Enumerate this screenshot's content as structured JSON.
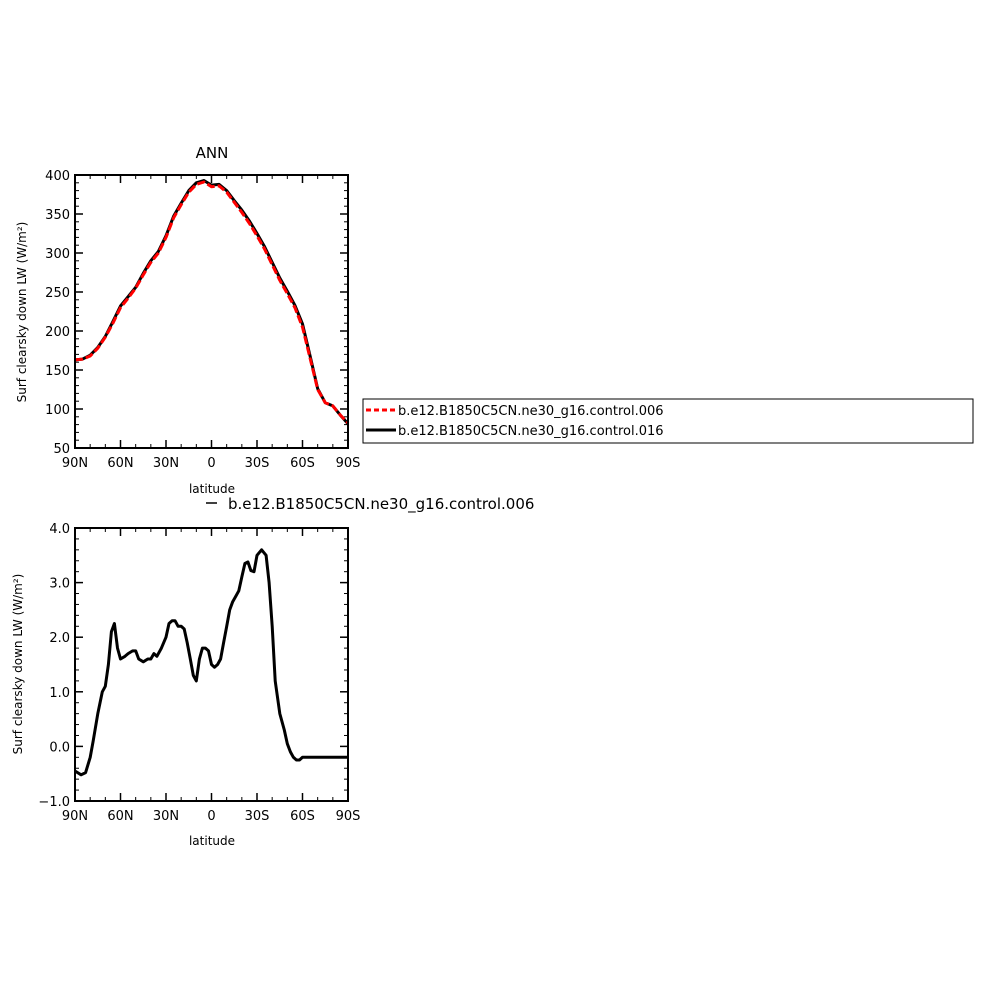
{
  "chart_data": [
    {
      "type": "line",
      "title": "ANN",
      "xlabel": "latitude",
      "ylabel": "Surf clearsky down LW (W/m²)",
      "xlim": [
        90,
        -90
      ],
      "ylim": [
        50,
        400
      ],
      "xticks": [
        90,
        60,
        30,
        0,
        -30,
        -60,
        -90
      ],
      "xtick_labels": [
        "90N",
        "60N",
        "30N",
        "0",
        "30S",
        "60S",
        "90S"
      ],
      "yticks": [
        50,
        100,
        150,
        200,
        250,
        300,
        350,
        400
      ],
      "ytick_labels": [
        "50",
        "100",
        "150",
        "200",
        "250",
        "300",
        "350",
        "400"
      ],
      "legend": "right",
      "series": [
        {
          "name": "b.e12.B1850C5CN.ne30_g16.control.006",
          "color": "#ff0000",
          "dashed": true,
          "x": [
            90,
            85,
            80,
            75,
            70,
            65,
            60,
            55,
            50,
            45,
            40,
            35,
            30,
            25,
            20,
            15,
            10,
            5,
            0,
            -5,
            -10,
            -15,
            -20,
            -25,
            -30,
            -35,
            -40,
            -45,
            -50,
            -55,
            -60,
            -65,
            -70,
            -75,
            -80,
            -85,
            -90
          ],
          "y": [
            163,
            164,
            168,
            178,
            192,
            210,
            230,
            242,
            255,
            272,
            288,
            300,
            320,
            345,
            362,
            378,
            388,
            391,
            385,
            386,
            378,
            365,
            352,
            338,
            322,
            305,
            285,
            265,
            248,
            230,
            205,
            165,
            125,
            108,
            104,
            92,
            82
          ]
        },
        {
          "name": "b.e12.B1850C5CN.ne30_g16.control.016",
          "color": "#000000",
          "dashed": false,
          "x": [
            90,
            85,
            80,
            75,
            70,
            65,
            60,
            55,
            50,
            45,
            40,
            35,
            30,
            25,
            20,
            15,
            10,
            5,
            0,
            -5,
            -10,
            -15,
            -20,
            -25,
            -30,
            -35,
            -40,
            -45,
            -50,
            -55,
            -60,
            -65,
            -70,
            -75,
            -80,
            -85,
            -90
          ],
          "y": [
            163,
            164,
            169,
            179,
            193,
            212,
            232,
            244,
            256,
            274,
            290,
            302,
            322,
            347,
            364,
            380,
            390,
            393,
            387,
            388,
            380,
            367,
            355,
            341,
            325,
            308,
            288,
            268,
            251,
            233,
            209,
            168,
            126,
            108,
            104,
            92,
            81
          ]
        }
      ]
    },
    {
      "type": "line",
      "title": "",
      "subtitle": "b.e12.B1850C5CN.ne30_g16.control.006",
      "xlabel": "latitude",
      "ylabel": "Surf clearsky down LW (W/m²)",
      "xlim": [
        90,
        -90
      ],
      "ylim": [
        -1.0,
        4.0
      ],
      "xticks": [
        90,
        60,
        30,
        0,
        -30,
        -60,
        -90
      ],
      "xtick_labels": [
        "90N",
        "60N",
        "30N",
        "0",
        "30S",
        "60S",
        "90S"
      ],
      "yticks": [
        -1.0,
        0.0,
        1.0,
        2.0,
        3.0,
        4.0
      ],
      "ytick_labels": [
        "−1.0",
        "0.0",
        "1.0",
        "2.0",
        "3.0",
        "4.0"
      ],
      "series": [
        {
          "color": "#000000",
          "x": [
            90,
            86,
            83,
            80,
            78,
            75,
            72,
            70,
            68,
            66,
            64,
            62,
            60,
            57,
            55,
            52,
            50,
            48,
            45,
            42,
            40,
            38,
            36,
            33,
            30,
            28,
            26,
            24,
            22,
            20,
            18,
            16,
            14,
            12,
            10,
            8,
            6,
            4,
            2,
            0,
            -2,
            -4,
            -6,
            -8,
            -10,
            -12,
            -14,
            -16,
            -18,
            -20,
            -22,
            -24,
            -26,
            -28,
            -30,
            -33,
            -36,
            -38,
            -40,
            -42,
            -45,
            -48,
            -50,
            -52,
            -54,
            -56,
            -58,
            -60,
            -62,
            -64,
            -66,
            -68,
            -70,
            -72,
            -74,
            -76,
            -78,
            -80,
            -82,
            -84,
            -86,
            -88,
            -90
          ],
          "y": [
            -0.45,
            -0.52,
            -0.48,
            -0.2,
            0.1,
            0.6,
            1.0,
            1.1,
            1.5,
            2.1,
            2.25,
            1.8,
            1.6,
            1.65,
            1.7,
            1.75,
            1.75,
            1.6,
            1.55,
            1.6,
            1.6,
            1.7,
            1.65,
            1.8,
            2.0,
            2.25,
            2.3,
            2.3,
            2.2,
            2.2,
            2.15,
            1.9,
            1.6,
            1.3,
            1.2,
            1.6,
            1.8,
            1.8,
            1.75,
            1.5,
            1.45,
            1.5,
            1.6,
            1.9,
            2.2,
            2.5,
            2.65,
            2.75,
            2.85,
            3.1,
            3.35,
            3.38,
            3.22,
            3.2,
            3.5,
            3.6,
            3.5,
            3.0,
            2.2,
            1.2,
            0.6,
            0.3,
            0.05,
            -0.1,
            -0.2,
            -0.25,
            -0.25,
            -0.2,
            -0.2,
            -0.2,
            -0.2,
            -0.2,
            -0.2,
            -0.2,
            -0.2,
            -0.2,
            -0.2,
            -0.2,
            -0.2,
            -0.2,
            -0.2,
            -0.2,
            -0.2
          ]
        }
      ]
    }
  ]
}
